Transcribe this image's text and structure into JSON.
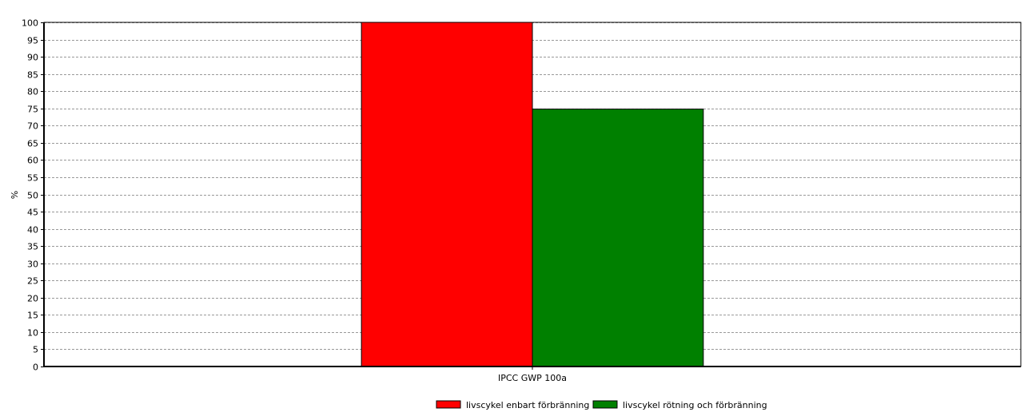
{
  "chart_data": {
    "type": "bar",
    "categories": [
      "IPCC GWP 100a"
    ],
    "series": [
      {
        "name": "livscykel enbart förbränning",
        "values": [
          100
        ],
        "color": "#ff0000"
      },
      {
        "name": "livscykel rötning och förbränning",
        "values": [
          74.8
        ],
        "color": "#008000"
      }
    ],
    "ylabel": "%",
    "xlabel": "",
    "title": "",
    "ylim": [
      0,
      100
    ],
    "yticks": [
      0,
      5,
      10,
      15,
      20,
      25,
      30,
      35,
      40,
      45,
      50,
      55,
      60,
      65,
      70,
      75,
      80,
      85,
      90,
      95,
      100
    ],
    "grid": true,
    "grid_style": "dashed",
    "legend_position": "bottom-center"
  }
}
